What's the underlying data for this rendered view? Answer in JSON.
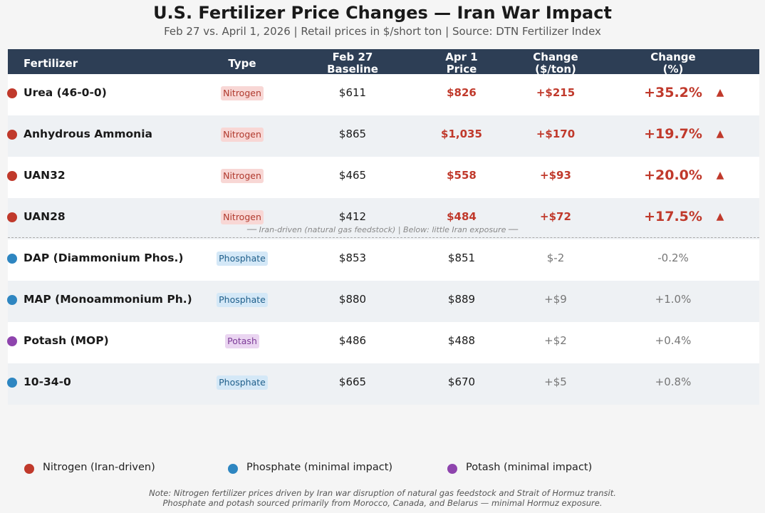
{
  "header": {
    "title": "U.S. Fertilizer Price Changes — Iran War Impact",
    "subtitle": "Feb 27 vs. April 1, 2026  |  Retail prices in $/short ton  |  Source: DTN Fertilizer Index"
  },
  "chart_data": {
    "type": "table",
    "title": "U.S. Fertilizer Price Changes — Iran War Impact",
    "columns": {
      "fertilizer": "Fertilizer",
      "type": "Type",
      "baseline_l1": "Feb 27",
      "baseline_l2": "Baseline",
      "apr_l1": "Apr 1",
      "apr_l2": "Price",
      "chg_l1": "Change",
      "chg_l2": "($/ton)",
      "pct_l1": "Change",
      "pct_l2": "(%)"
    },
    "rows": [
      {
        "name": "Urea (46-0-0)",
        "type": "Nitrogen",
        "baseline": "$611",
        "apr": "$826",
        "change": "+$215",
        "pct": "+35.2%",
        "arrow": "▲",
        "highlight": true
      },
      {
        "name": "Anhydrous Ammonia",
        "type": "Nitrogen",
        "baseline": "$865",
        "apr": "$1,035",
        "change": "+$170",
        "pct": "+19.7%",
        "arrow": "▲",
        "highlight": true
      },
      {
        "name": "UAN32",
        "type": "Nitrogen",
        "baseline": "$465",
        "apr": "$558",
        "change": "+$93",
        "pct": "+20.0%",
        "arrow": "▲",
        "highlight": true
      },
      {
        "name": "UAN28",
        "type": "Nitrogen",
        "baseline": "$412",
        "apr": "$484",
        "change": "+$72",
        "pct": "+17.5%",
        "arrow": "▲",
        "highlight": true
      },
      {
        "name": "DAP (Diammonium Phos.)",
        "type": "Phosphate",
        "baseline": "$853",
        "apr": "$851",
        "change": "$-2",
        "pct": "-0.2%",
        "arrow": "",
        "highlight": false
      },
      {
        "name": "MAP (Monoammonium Ph.)",
        "type": "Phosphate",
        "baseline": "$880",
        "apr": "$889",
        "change": "+$9",
        "pct": "+1.0%",
        "arrow": "",
        "highlight": false
      },
      {
        "name": "Potash (MOP)",
        "type": "Potash",
        "baseline": "$486",
        "apr": "$488",
        "change": "+$2",
        "pct": "+0.4%",
        "arrow": "",
        "highlight": false
      },
      {
        "name": "10-34-0",
        "type": "Phosphate",
        "baseline": "$665",
        "apr": "$670",
        "change": "+$5",
        "pct": "+0.8%",
        "arrow": "",
        "highlight": false
      }
    ],
    "divider_label": "── Iran-driven (natural gas feedstock)  |  Below: little Iran exposure ──"
  },
  "type_styles": {
    "Nitrogen": {
      "dot": "#c0392b",
      "badge_bg": "#f8d7d5",
      "badge_fg": "#b03a2e"
    },
    "Phosphate": {
      "dot": "#2e86c1",
      "badge_bg": "#d4e8f7",
      "badge_fg": "#1f5f8b"
    },
    "Potash": {
      "dot": "#8e44ad",
      "badge_bg": "#ead5f1",
      "badge_fg": "#7d3c98"
    }
  },
  "legend": [
    {
      "label": "Nitrogen (Iran-driven)",
      "color": "#c0392b"
    },
    {
      "label": "Phosphate (minimal impact)",
      "color": "#2e86c1"
    },
    {
      "label": "Potash (minimal impact)",
      "color": "#8e44ad"
    }
  ],
  "note": {
    "line1": "Note: Nitrogen fertilizer prices driven by Iran war disruption of natural gas feedstock and Strait of Hormuz transit.",
    "line2": "Phosphate and potash sourced primarily from Morocco, Canada, and Belarus — minimal Hormuz exposure."
  }
}
